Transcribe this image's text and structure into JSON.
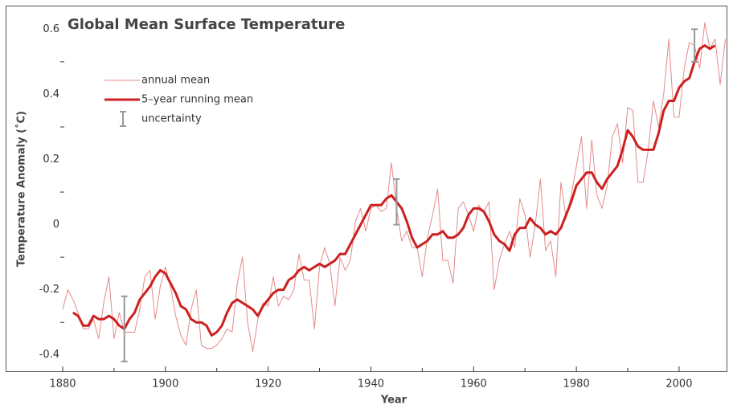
{
  "chart_data": {
    "type": "line",
    "title": "Global Mean Surface Temperature",
    "x_label": "Year",
    "y_label": "Temperature Anomaly (˚C)",
    "xlim": [
      1880,
      2009.4
    ],
    "ylim": [
      -0.45,
      0.67
    ],
    "xticks": [
      1880,
      1900,
      1920,
      1940,
      1960,
      1980,
      2000
    ],
    "xminor_ticks": [
      1890,
      1910,
      1930,
      1950,
      1970,
      1990
    ],
    "yticks": [
      -0.4,
      -0.2,
      0,
      0.2,
      0.4,
      0.6
    ],
    "yminor_ticks": [
      -0.3,
      -0.1,
      0.1,
      0.3,
      0.5
    ],
    "grid": false,
    "legend_loc": "upper left",
    "x": [
      1880,
      1881,
      1882,
      1883,
      1884,
      1885,
      1886,
      1887,
      1888,
      1889,
      1890,
      1891,
      1892,
      1893,
      1894,
      1895,
      1896,
      1897,
      1898,
      1899,
      1900,
      1901,
      1902,
      1903,
      1904,
      1905,
      1906,
      1907,
      1908,
      1909,
      1910,
      1911,
      1912,
      1913,
      1914,
      1915,
      1916,
      1917,
      1918,
      1919,
      1920,
      1921,
      1922,
      1923,
      1924,
      1925,
      1926,
      1927,
      1928,
      1929,
      1930,
      1931,
      1932,
      1933,
      1934,
      1935,
      1936,
      1937,
      1938,
      1939,
      1940,
      1941,
      1942,
      1943,
      1944,
      1945,
      1946,
      1947,
      1948,
      1949,
      1950,
      1951,
      1952,
      1953,
      1954,
      1955,
      1956,
      1957,
      1958,
      1959,
      1960,
      1961,
      1962,
      1963,
      1964,
      1965,
      1966,
      1967,
      1968,
      1969,
      1970,
      1971,
      1972,
      1973,
      1974,
      1975,
      1976,
      1977,
      1978,
      1979,
      1980,
      1981,
      1982,
      1983,
      1984,
      1985,
      1986,
      1987,
      1988,
      1989,
      1990,
      1991,
      1992,
      1993,
      1994,
      1995,
      1996,
      1997,
      1998,
      1999,
      2000,
      2001,
      2002,
      2003,
      2004,
      2005,
      2006,
      2007,
      2008,
      2009
    ],
    "series": [
      {
        "name": "annual mean",
        "color": "#e58a8a",
        "width": 1,
        "values": [
          -0.26,
          -0.2,
          -0.23,
          -0.27,
          -0.32,
          -0.32,
          -0.29,
          -0.35,
          -0.24,
          -0.16,
          -0.35,
          -0.27,
          -0.33,
          -0.33,
          -0.33,
          -0.26,
          -0.16,
          -0.14,
          -0.29,
          -0.19,
          -0.13,
          -0.19,
          -0.28,
          -0.34,
          -0.37,
          -0.26,
          -0.2,
          -0.37,
          -0.38,
          -0.38,
          -0.37,
          -0.35,
          -0.32,
          -0.33,
          -0.18,
          -0.1,
          -0.3,
          -0.39,
          -0.29,
          -0.24,
          -0.25,
          -0.16,
          -0.25,
          -0.22,
          -0.23,
          -0.2,
          -0.09,
          -0.17,
          -0.17,
          -0.32,
          -0.13,
          -0.07,
          -0.12,
          -0.25,
          -0.1,
          -0.14,
          -0.11,
          0.01,
          0.05,
          -0.02,
          0.05,
          0.06,
          0.04,
          0.05,
          0.19,
          0.05,
          -0.05,
          -0.02,
          -0.07,
          -0.07,
          -0.16,
          -0.04,
          0.03,
          0.11,
          -0.11,
          -0.11,
          -0.18,
          0.05,
          0.07,
          0.03,
          -0.02,
          0.06,
          0.04,
          0.07,
          -0.2,
          -0.11,
          -0.06,
          -0.02,
          -0.07,
          0.08,
          0.03,
          -0.1,
          0,
          0.14,
          -0.08,
          -0.05,
          -0.16,
          0.13,
          0.02,
          0.09,
          0.18,
          0.27,
          0.05,
          0.26,
          0.09,
          0.05,
          0.12,
          0.27,
          0.31,
          0.19,
          0.36,
          0.35,
          0.13,
          0.13,
          0.23,
          0.38,
          0.3,
          0.4,
          0.57,
          0.33,
          0.33,
          0.48,
          0.56,
          0.55,
          0.48,
          0.62,
          0.54,
          0.57,
          0.43,
          0.57
        ]
      },
      {
        "name": "5–year running mean",
        "color": "#cc2020",
        "width": 3,
        "values": [
          null,
          null,
          -0.27,
          -0.28,
          -0.31,
          -0.31,
          -0.28,
          -0.29,
          -0.29,
          -0.28,
          -0.29,
          -0.31,
          -0.32,
          -0.29,
          -0.27,
          -0.23,
          -0.21,
          -0.19,
          -0.16,
          -0.14,
          -0.15,
          -0.18,
          -0.21,
          -0.25,
          -0.26,
          -0.29,
          -0.3,
          -0.3,
          -0.31,
          -0.34,
          -0.33,
          -0.31,
          -0.27,
          -0.24,
          -0.23,
          -0.24,
          -0.25,
          -0.26,
          -0.28,
          -0.25,
          -0.23,
          -0.21,
          -0.2,
          -0.2,
          -0.17,
          -0.16,
          -0.14,
          -0.13,
          -0.14,
          -0.13,
          -0.12,
          -0.13,
          -0.12,
          -0.11,
          -0.09,
          -0.09,
          -0.06,
          -0.03,
          0,
          0.03,
          0.06,
          0.06,
          0.06,
          0.08,
          0.09,
          0.07,
          0.05,
          0.01,
          -0.04,
          -0.07,
          -0.06,
          -0.05,
          -0.03,
          -0.03,
          -0.02,
          -0.04,
          -0.04,
          -0.03,
          -0.01,
          0.03,
          0.05,
          0.05,
          0.04,
          0.01,
          -0.03,
          -0.05,
          -0.06,
          -0.08,
          -0.03,
          -0.01,
          -0.01,
          0.02,
          0,
          -0.01,
          -0.03,
          -0.02,
          -0.03,
          -0.01,
          0.03,
          0.07,
          0.12,
          0.14,
          0.16,
          0.16,
          0.13,
          0.11,
          0.14,
          0.16,
          0.18,
          0.23,
          0.29,
          0.27,
          0.24,
          0.23,
          0.23,
          0.23,
          0.28,
          0.35,
          0.38,
          0.38,
          0.42,
          0.44,
          0.45,
          0.5,
          0.54,
          0.55,
          0.54,
          0.55,
          null,
          null
        ]
      },
      {
        "name": "uncertainty",
        "color": "#999999",
        "x": [
          1892,
          1945,
          2003
        ],
        "values": [
          -0.32,
          0.07,
          0.55
        ],
        "errors": [
          0.1,
          0.07,
          0.05
        ]
      }
    ]
  }
}
